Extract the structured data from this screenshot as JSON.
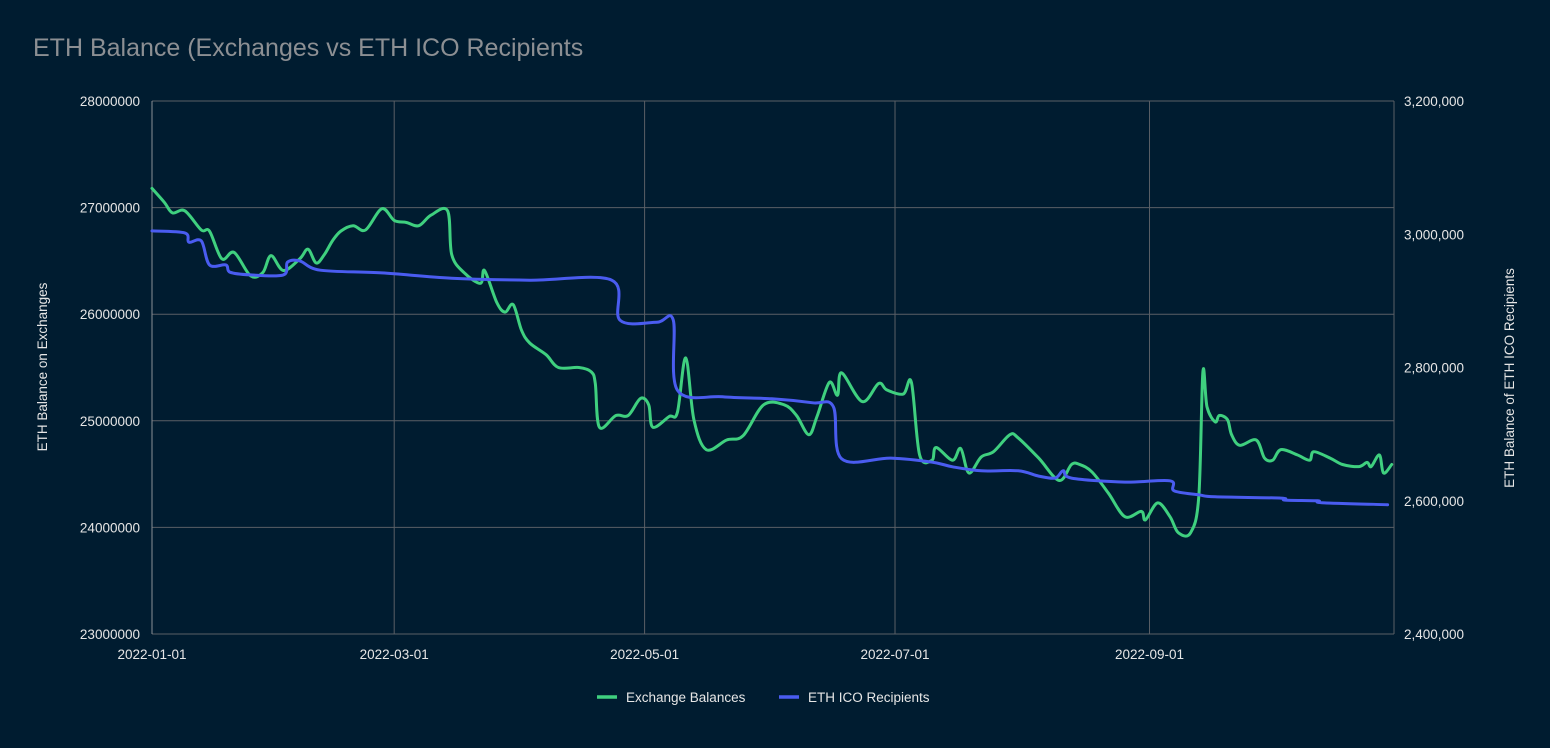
{
  "chart_data": {
    "type": "line",
    "title": "ETH Balance (Exchanges vs ETH ICO Recipients",
    "xlabel": "",
    "ylabel_left": "ETH Balance on Exchanges",
    "ylabel_right": "ETH Balance of ETH ICO Recipients",
    "xlim": [
      "2022-01-01",
      "2022-10-31"
    ],
    "ylim_left": [
      23000000,
      28000000
    ],
    "ylim_right": [
      2400000,
      3200000
    ],
    "x_ticks": [
      "2022-01-01",
      "2022-03-01",
      "2022-05-01",
      "2022-07-01",
      "2022-09-01"
    ],
    "y_ticks_left": [
      "23000000",
      "24000000",
      "25000000",
      "26000000",
      "27000000",
      "28000000"
    ],
    "y_ticks_right": [
      "2,400,000",
      "2,600,000",
      "2,800,000",
      "3,000,000",
      "3,200,000"
    ],
    "grid": true,
    "legend_position": "bottom",
    "series": [
      {
        "name": "Exchange Balances",
        "axis": "left",
        "color": "#3fd07f",
        "points": [
          [
            "2022-01-01",
            27180000
          ],
          [
            "2022-01-04",
            27050000
          ],
          [
            "2022-01-06",
            26950000
          ],
          [
            "2022-01-09",
            26970000
          ],
          [
            "2022-01-13",
            26790000
          ],
          [
            "2022-01-15",
            26780000
          ],
          [
            "2022-01-18",
            26520000
          ],
          [
            "2022-01-21",
            26580000
          ],
          [
            "2022-01-25",
            26360000
          ],
          [
            "2022-01-28",
            26390000
          ],
          [
            "2022-01-30",
            26550000
          ],
          [
            "2022-02-02",
            26410000
          ],
          [
            "2022-02-06",
            26520000
          ],
          [
            "2022-02-08",
            26610000
          ],
          [
            "2022-02-10",
            26480000
          ],
          [
            "2022-02-12",
            26560000
          ],
          [
            "2022-02-14",
            26690000
          ],
          [
            "2022-02-16",
            26780000
          ],
          [
            "2022-02-19",
            26830000
          ],
          [
            "2022-02-22",
            26790000
          ],
          [
            "2022-02-26",
            26990000
          ],
          [
            "2022-03-01",
            26880000
          ],
          [
            "2022-03-04",
            26860000
          ],
          [
            "2022-03-07",
            26830000
          ],
          [
            "2022-03-10",
            26930000
          ],
          [
            "2022-03-14",
            26970000
          ],
          [
            "2022-03-15",
            26560000
          ],
          [
            "2022-03-18",
            26390000
          ],
          [
            "2022-03-22",
            26290000
          ],
          [
            "2022-03-23",
            26410000
          ],
          [
            "2022-03-26",
            26110000
          ],
          [
            "2022-03-28",
            26020000
          ],
          [
            "2022-03-30",
            26090000
          ],
          [
            "2022-04-01",
            25850000
          ],
          [
            "2022-04-03",
            25730000
          ],
          [
            "2022-04-07",
            25620000
          ],
          [
            "2022-04-10",
            25500000
          ],
          [
            "2022-04-15",
            25500000
          ],
          [
            "2022-04-18",
            25460000
          ],
          [
            "2022-04-19",
            25350000
          ],
          [
            "2022-04-20",
            24940000
          ],
          [
            "2022-04-24",
            25050000
          ],
          [
            "2022-04-27",
            25050000
          ],
          [
            "2022-04-30",
            25210000
          ],
          [
            "2022-05-02",
            25150000
          ],
          [
            "2022-05-03",
            24940000
          ],
          [
            "2022-05-07",
            25040000
          ],
          [
            "2022-05-09",
            25080000
          ],
          [
            "2022-05-11",
            25590000
          ],
          [
            "2022-05-13",
            25010000
          ],
          [
            "2022-05-16",
            24730000
          ],
          [
            "2022-05-21",
            24820000
          ],
          [
            "2022-05-25",
            24860000
          ],
          [
            "2022-05-30",
            25150000
          ],
          [
            "2022-06-04",
            25150000
          ],
          [
            "2022-06-07",
            25050000
          ],
          [
            "2022-06-10",
            24870000
          ],
          [
            "2022-06-12",
            25040000
          ],
          [
            "2022-06-15",
            25360000
          ],
          [
            "2022-06-17",
            25240000
          ],
          [
            "2022-06-18",
            25450000
          ],
          [
            "2022-06-23",
            25180000
          ],
          [
            "2022-06-27",
            25350000
          ],
          [
            "2022-06-29",
            25290000
          ],
          [
            "2022-07-03",
            25250000
          ],
          [
            "2022-07-05",
            25360000
          ],
          [
            "2022-07-07",
            24680000
          ],
          [
            "2022-07-10",
            24630000
          ],
          [
            "2022-07-11",
            24750000
          ],
          [
            "2022-07-15",
            24630000
          ],
          [
            "2022-07-17",
            24740000
          ],
          [
            "2022-07-19",
            24510000
          ],
          [
            "2022-07-22",
            24660000
          ],
          [
            "2022-07-25",
            24710000
          ],
          [
            "2022-07-29",
            24870000
          ],
          [
            "2022-07-31",
            24840000
          ],
          [
            "2022-08-05",
            24650000
          ],
          [
            "2022-08-10",
            24440000
          ],
          [
            "2022-08-13",
            24590000
          ],
          [
            "2022-08-15",
            24590000
          ],
          [
            "2022-08-18",
            24520000
          ],
          [
            "2022-08-22",
            24320000
          ],
          [
            "2022-08-26",
            24100000
          ],
          [
            "2022-08-30",
            24150000
          ],
          [
            "2022-08-31",
            24070000
          ],
          [
            "2022-09-03",
            24230000
          ],
          [
            "2022-09-06",
            24100000
          ],
          [
            "2022-09-08",
            23950000
          ],
          [
            "2022-09-11",
            23950000
          ],
          [
            "2022-09-13",
            24290000
          ],
          [
            "2022-09-14",
            25460000
          ],
          [
            "2022-09-15",
            25130000
          ],
          [
            "2022-09-17",
            24990000
          ],
          [
            "2022-09-18",
            25050000
          ],
          [
            "2022-09-20",
            25010000
          ],
          [
            "2022-09-21",
            24870000
          ],
          [
            "2022-09-23",
            24770000
          ],
          [
            "2022-09-27",
            24820000
          ],
          [
            "2022-09-29",
            24650000
          ],
          [
            "2022-10-01",
            24630000
          ],
          [
            "2022-10-03",
            24730000
          ],
          [
            "2022-10-07",
            24680000
          ],
          [
            "2022-10-10",
            24630000
          ],
          [
            "2022-10-11",
            24710000
          ],
          [
            "2022-10-15",
            24650000
          ],
          [
            "2022-10-18",
            24590000
          ],
          [
            "2022-10-22",
            24570000
          ],
          [
            "2022-10-24",
            24610000
          ],
          [
            "2022-10-25",
            24570000
          ],
          [
            "2022-10-27",
            24680000
          ],
          [
            "2022-10-28",
            24510000
          ],
          [
            "2022-10-30",
            24590000
          ]
        ]
      },
      {
        "name": "ETH ICO Recipients",
        "axis": "right",
        "color": "#4a5cf0",
        "points": [
          [
            "2022-01-01",
            3005000
          ],
          [
            "2022-01-09",
            3002000
          ],
          [
            "2022-01-10",
            2988000
          ],
          [
            "2022-01-13",
            2990000
          ],
          [
            "2022-01-15",
            2954000
          ],
          [
            "2022-01-19",
            2954000
          ],
          [
            "2022-01-20",
            2943000
          ],
          [
            "2022-01-25",
            2939000
          ],
          [
            "2022-02-02",
            2939000
          ],
          [
            "2022-02-03",
            2958000
          ],
          [
            "2022-02-06",
            2960000
          ],
          [
            "2022-02-11",
            2946000
          ],
          [
            "2022-02-26",
            2942000
          ],
          [
            "2022-03-15",
            2934000
          ],
          [
            "2022-04-03",
            2931000
          ],
          [
            "2022-04-23",
            2931000
          ],
          [
            "2022-04-25",
            2871000
          ],
          [
            "2022-05-04",
            2868000
          ],
          [
            "2022-05-08",
            2871000
          ],
          [
            "2022-05-09",
            2766000
          ],
          [
            "2022-05-20",
            2756000
          ],
          [
            "2022-06-01",
            2753000
          ],
          [
            "2022-06-11",
            2747000
          ],
          [
            "2022-06-16",
            2741000
          ],
          [
            "2022-06-18",
            2663000
          ],
          [
            "2022-06-30",
            2664000
          ],
          [
            "2022-07-10",
            2658000
          ],
          [
            "2022-07-15",
            2651000
          ],
          [
            "2022-07-22",
            2645000
          ],
          [
            "2022-07-31",
            2645000
          ],
          [
            "2022-08-05",
            2637000
          ],
          [
            "2022-08-09",
            2634000
          ],
          [
            "2022-08-11",
            2645000
          ],
          [
            "2022-08-13",
            2634000
          ],
          [
            "2022-08-26",
            2628000
          ],
          [
            "2022-09-06",
            2630000
          ],
          [
            "2022-09-07",
            2615000
          ],
          [
            "2022-09-13",
            2609000
          ],
          [
            "2022-09-17",
            2606000
          ],
          [
            "2022-10-03",
            2604000
          ],
          [
            "2022-10-04",
            2601000
          ],
          [
            "2022-10-12",
            2600000
          ],
          [
            "2022-10-13",
            2597000
          ],
          [
            "2022-10-29",
            2594000
          ]
        ]
      }
    ]
  }
}
